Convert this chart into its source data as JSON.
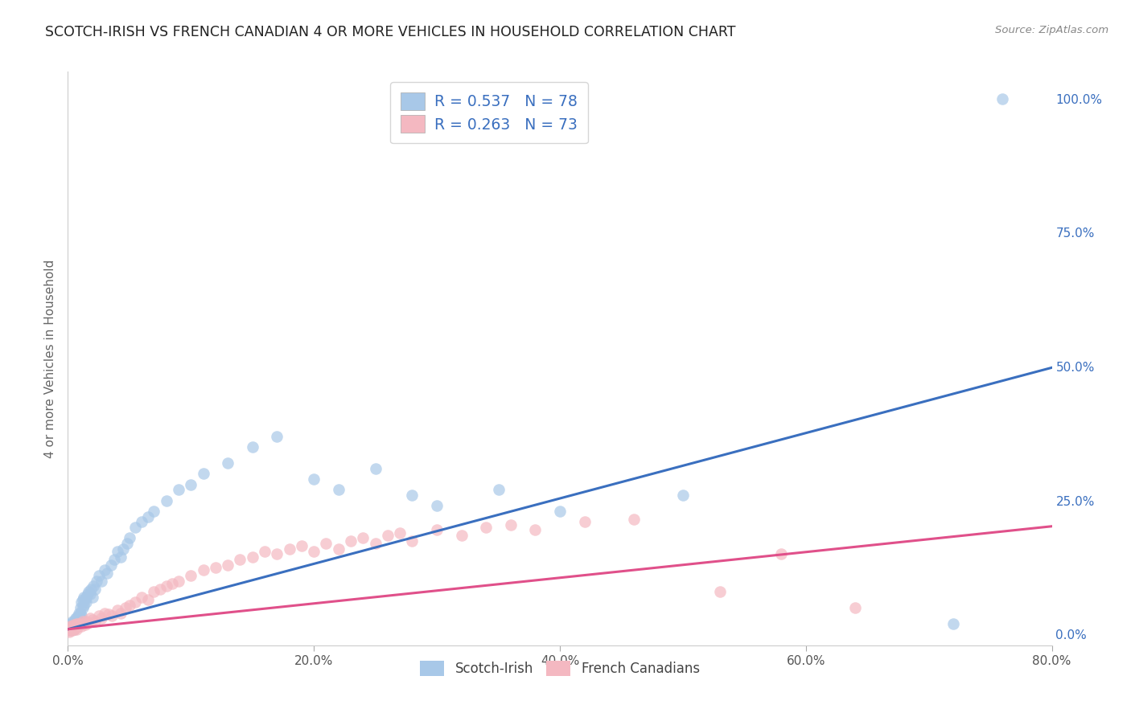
{
  "title": "SCOTCH-IRISH VS FRENCH CANADIAN 4 OR MORE VEHICLES IN HOUSEHOLD CORRELATION CHART",
  "source": "Source: ZipAtlas.com",
  "ylabel_label": "4 or more Vehicles in Household",
  "legend_label1": "Scotch-Irish",
  "legend_label2": "French Canadians",
  "R1": 0.537,
  "N1": 78,
  "R2": 0.263,
  "N2": 73,
  "color1": "#a8c8e8",
  "color2": "#f4b8c1",
  "line_color1": "#3a6fbf",
  "line_color2": "#e0508a",
  "legend_text_color": "#3a6fbf",
  "background_color": "#ffffff",
  "grid_color": "#cccccc",
  "title_fontsize": 12.5,
  "label_fontsize": 11,
  "tick_fontsize": 11,
  "xlim": [
    0.0,
    0.8
  ],
  "ylim": [
    -0.02,
    1.05
  ],
  "x_ticks": [
    0.0,
    0.2,
    0.4,
    0.6,
    0.8
  ],
  "x_tick_labels": [
    "0.0%",
    "20.0%",
    "40.0%",
    "60.0%",
    "80.0%"
  ],
  "y_ticks": [
    0.0,
    0.25,
    0.5,
    0.75,
    1.0
  ],
  "y_tick_labels": [
    "0.0%",
    "25.0%",
    "50.0%",
    "75.0%",
    "100.0%"
  ],
  "scotch_irish_x": [
    0.001,
    0.001,
    0.002,
    0.002,
    0.002,
    0.003,
    0.003,
    0.003,
    0.004,
    0.004,
    0.004,
    0.005,
    0.005,
    0.005,
    0.005,
    0.006,
    0.006,
    0.006,
    0.007,
    0.007,
    0.007,
    0.008,
    0.008,
    0.008,
    0.009,
    0.009,
    0.01,
    0.01,
    0.01,
    0.011,
    0.011,
    0.012,
    0.012,
    0.013,
    0.013,
    0.014,
    0.015,
    0.015,
    0.016,
    0.017,
    0.018,
    0.019,
    0.02,
    0.021,
    0.022,
    0.023,
    0.025,
    0.027,
    0.03,
    0.032,
    0.035,
    0.038,
    0.04,
    0.043,
    0.045,
    0.048,
    0.05,
    0.055,
    0.06,
    0.065,
    0.07,
    0.08,
    0.09,
    0.1,
    0.11,
    0.13,
    0.15,
    0.17,
    0.2,
    0.22,
    0.25,
    0.28,
    0.3,
    0.35,
    0.4,
    0.5,
    0.72,
    0.76
  ],
  "scotch_irish_y": [
    0.01,
    0.015,
    0.008,
    0.012,
    0.02,
    0.01,
    0.015,
    0.02,
    0.012,
    0.018,
    0.025,
    0.01,
    0.015,
    0.02,
    0.025,
    0.015,
    0.02,
    0.03,
    0.015,
    0.02,
    0.03,
    0.02,
    0.025,
    0.035,
    0.025,
    0.04,
    0.03,
    0.04,
    0.05,
    0.035,
    0.06,
    0.05,
    0.065,
    0.055,
    0.07,
    0.065,
    0.06,
    0.07,
    0.075,
    0.08,
    0.075,
    0.085,
    0.07,
    0.09,
    0.085,
    0.1,
    0.11,
    0.1,
    0.12,
    0.115,
    0.13,
    0.14,
    0.155,
    0.145,
    0.16,
    0.17,
    0.18,
    0.2,
    0.21,
    0.22,
    0.23,
    0.25,
    0.27,
    0.28,
    0.3,
    0.32,
    0.35,
    0.37,
    0.29,
    0.27,
    0.31,
    0.26,
    0.24,
    0.27,
    0.23,
    0.26,
    0.02,
    1.0
  ],
  "french_canadian_x": [
    0.001,
    0.001,
    0.002,
    0.002,
    0.003,
    0.003,
    0.004,
    0.004,
    0.005,
    0.005,
    0.006,
    0.006,
    0.007,
    0.007,
    0.008,
    0.008,
    0.009,
    0.01,
    0.011,
    0.012,
    0.013,
    0.014,
    0.015,
    0.016,
    0.018,
    0.02,
    0.022,
    0.025,
    0.027,
    0.03,
    0.033,
    0.036,
    0.04,
    0.043,
    0.047,
    0.05,
    0.055,
    0.06,
    0.065,
    0.07,
    0.075,
    0.08,
    0.085,
    0.09,
    0.1,
    0.11,
    0.12,
    0.13,
    0.14,
    0.15,
    0.16,
    0.17,
    0.18,
    0.19,
    0.2,
    0.21,
    0.22,
    0.23,
    0.24,
    0.25,
    0.26,
    0.27,
    0.28,
    0.3,
    0.32,
    0.34,
    0.36,
    0.38,
    0.42,
    0.46,
    0.53,
    0.58,
    0.64
  ],
  "french_canadian_y": [
    0.005,
    0.01,
    0.008,
    0.015,
    0.01,
    0.015,
    0.008,
    0.012,
    0.01,
    0.018,
    0.012,
    0.015,
    0.01,
    0.02,
    0.015,
    0.02,
    0.018,
    0.02,
    0.015,
    0.025,
    0.02,
    0.018,
    0.025,
    0.022,
    0.03,
    0.028,
    0.025,
    0.035,
    0.03,
    0.04,
    0.038,
    0.035,
    0.045,
    0.04,
    0.05,
    0.055,
    0.06,
    0.07,
    0.065,
    0.08,
    0.085,
    0.09,
    0.095,
    0.1,
    0.11,
    0.12,
    0.125,
    0.13,
    0.14,
    0.145,
    0.155,
    0.15,
    0.16,
    0.165,
    0.155,
    0.17,
    0.16,
    0.175,
    0.18,
    0.17,
    0.185,
    0.19,
    0.175,
    0.195,
    0.185,
    0.2,
    0.205,
    0.195,
    0.21,
    0.215,
    0.08,
    0.15,
    0.05
  ]
}
